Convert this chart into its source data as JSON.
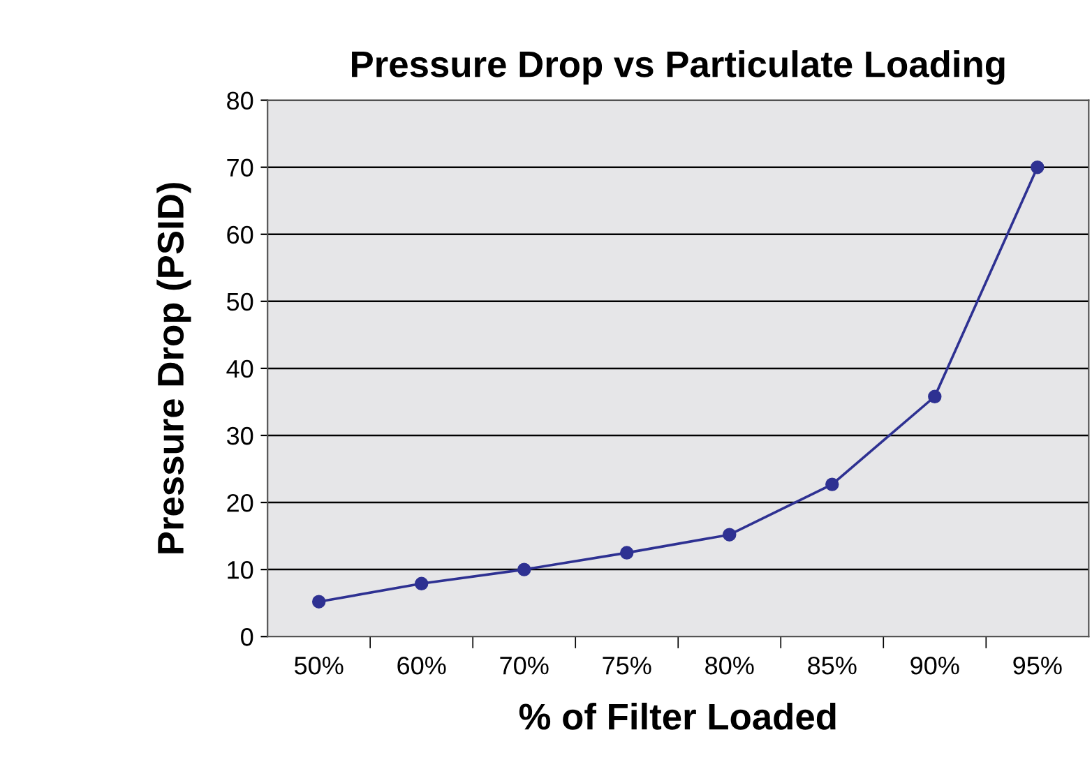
{
  "chart_data": {
    "type": "line",
    "title": "Pressure Drop vs Particulate Loading",
    "xlabel": "% of Filter Loaded",
    "ylabel": "Pressure Drop (PSID)",
    "categories": [
      "50%",
      "60%",
      "70%",
      "75%",
      "80%",
      "85%",
      "90%",
      "95%"
    ],
    "series": [
      {
        "color": "#2e3192",
        "values": [
          5.2,
          7.9,
          10,
          12.5,
          15.2,
          22.7,
          35.8,
          70
        ]
      }
    ],
    "ylim": [
      0,
      80
    ],
    "yticks": [
      0,
      10,
      20,
      30,
      40,
      50,
      60,
      70,
      80
    ],
    "grid": "y",
    "marker": "circle",
    "line_style": "solid",
    "legend": false
  }
}
